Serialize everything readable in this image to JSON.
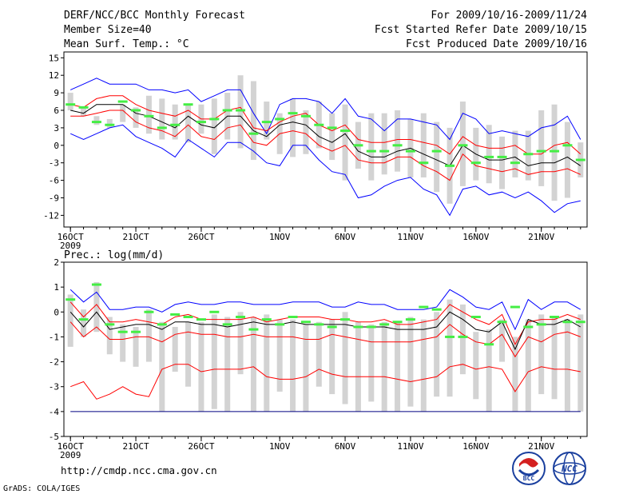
{
  "header": {
    "title": "DERF/NCC/BCC Monthly Forecast",
    "member_size": "Member Size=40",
    "variable": "Mean Surf. Temp.: °C",
    "forecast_period": "For 2009/10/16-2009/11/24",
    "fcst_started": "Fcst Started Refer Date 2009/10/15",
    "fcst_produced": "Fcst Produced Date 2009/10/16"
  },
  "footer": {
    "url": "http://cmdp.ncc.cma.gov.cn",
    "grads": "GrADS: COLA/IGES",
    "logo_bcc": "BCC",
    "logo_ncc": "NCC"
  },
  "colors": {
    "max_min": "#0000ff",
    "spread": "#ff0000",
    "mean": "#000000",
    "observed": "#44ee44",
    "box": "#d3d3d3",
    "floor": "#000080"
  },
  "chart_data": [
    {
      "type": "box",
      "title": "Mean Surf. Temp.: °C",
      "xlabel": "",
      "ylabel": "°C",
      "ylim": [
        -14,
        16
      ],
      "yticks": [
        15,
        12,
        9,
        6,
        3,
        0,
        -3,
        -6,
        -9,
        -12
      ],
      "xlim": [
        0.5,
        40.5
      ],
      "xticks": [
        {
          "day": 1,
          "label": "16OCT",
          "sub": "2009"
        },
        {
          "day": 6,
          "label": "21OCT"
        },
        {
          "day": 11,
          "label": "26OCT"
        },
        {
          "day": 17,
          "label": "1NOV"
        },
        {
          "day": 22,
          "label": "6NOV"
        },
        {
          "day": 27,
          "label": "11NOV"
        },
        {
          "day": 32,
          "label": "16NOV"
        },
        {
          "day": 37,
          "label": "21NOV"
        }
      ],
      "series": {
        "max": [
          9.5,
          10.5,
          11.5,
          10.5,
          10.5,
          10.5,
          9.5,
          9.5,
          9.0,
          9.5,
          7.5,
          8.5,
          9.5,
          9.5,
          5.5,
          2.0,
          7.0,
          8.0,
          8.0,
          7.5,
          5.5,
          8.0,
          5.0,
          4.5,
          2.5,
          4.5,
          4.5,
          4.0,
          3.5,
          1.0,
          5.5,
          4.5,
          2.0,
          2.5,
          2.0,
          1.5,
          3.0,
          3.5,
          5.0,
          1.0
        ],
        "upper": [
          7.0,
          6.5,
          8.0,
          8.5,
          8.5,
          7.0,
          6.0,
          5.5,
          5.0,
          6.0,
          4.5,
          4.5,
          6.0,
          6.5,
          3.0,
          2.5,
          4.0,
          5.0,
          5.5,
          3.5,
          2.5,
          3.5,
          1.0,
          0.5,
          0.5,
          1.0,
          1.0,
          0.5,
          0.0,
          -1.5,
          1.5,
          0.0,
          -0.5,
          -0.5,
          0.0,
          -1.5,
          -1.5,
          0.0,
          0.5,
          -1.5
        ],
        "mean": [
          6.0,
          5.5,
          7.0,
          7.0,
          7.0,
          5.5,
          5.0,
          4.0,
          3.0,
          5.0,
          3.5,
          3.0,
          5.0,
          5.0,
          2.5,
          1.5,
          3.5,
          4.0,
          3.5,
          1.5,
          0.5,
          2.0,
          -1.0,
          -2.0,
          -2.0,
          -1.0,
          -0.5,
          -1.5,
          -2.5,
          -3.5,
          0.0,
          -1.5,
          -2.5,
          -2.5,
          -2.0,
          -3.5,
          -3.0,
          -3.0,
          -2.0,
          -3.5
        ],
        "lower": [
          5.0,
          5.0,
          5.5,
          6.0,
          6.0,
          4.0,
          3.0,
          2.5,
          1.5,
          3.5,
          1.5,
          1.0,
          3.0,
          3.5,
          0.5,
          0.0,
          2.0,
          2.5,
          2.0,
          0.0,
          -1.0,
          0.0,
          -2.5,
          -3.0,
          -3.0,
          -2.0,
          -2.0,
          -3.5,
          -4.5,
          -6.0,
          -1.5,
          -3.5,
          -4.0,
          -4.5,
          -4.0,
          -5.0,
          -4.5,
          -4.5,
          -4.0,
          -5.0
        ],
        "min": [
          2.0,
          1.0,
          2.0,
          3.0,
          3.5,
          1.5,
          0.5,
          -0.5,
          -2.0,
          1.0,
          -0.5,
          -2.0,
          0.5,
          0.5,
          -1.0,
          -3.0,
          -3.5,
          0.0,
          0.0,
          -2.5,
          -4.5,
          -5.0,
          -9.0,
          -8.5,
          -7.0,
          -6.0,
          -5.5,
          -7.5,
          -8.5,
          -12.0,
          -7.5,
          -7.0,
          -8.5,
          -8.0,
          -9.0,
          -8.0,
          -9.5,
          -11.5,
          -10.0,
          -9.5
        ],
        "box_hi": [
          9.0,
          6.5,
          5.0,
          4.5,
          7.0,
          6.5,
          8.5,
          8.0,
          7.0,
          7.0,
          7.0,
          8.0,
          9.0,
          12.0,
          11.0,
          7.5,
          5.5,
          8.0,
          6.0,
          7.5,
          5.5,
          7.0,
          4.0,
          5.5,
          5.5,
          6.0,
          4.5,
          5.5,
          4.0,
          3.0,
          7.5,
          3.0,
          3.5,
          1.5,
          2.5,
          2.5,
          6.0,
          7.0,
          4.0,
          0.5
        ],
        "box_lo": [
          6.0,
          5.0,
          3.5,
          3.0,
          4.0,
          3.0,
          2.0,
          1.0,
          1.0,
          0.5,
          2.0,
          -1.5,
          1.0,
          -0.5,
          -2.5,
          1.0,
          -1.5,
          -2.0,
          -1.5,
          -0.5,
          -2.5,
          -6.0,
          -4.0,
          -6.0,
          -5.0,
          -4.5,
          -5.5,
          -5.5,
          -8.0,
          -10.0,
          -7.0,
          -6.0,
          -6.5,
          -7.5,
          -5.5,
          -6.0,
          -7.0,
          -9.5,
          -9.0,
          -5.5
        ],
        "observed": [
          7.0,
          6.5,
          4.0,
          3.5,
          7.5,
          6.0,
          5.0,
          3.0,
          3.5,
          7.0,
          4.0,
          4.5,
          6.0,
          6.0,
          2.0,
          4.0,
          4.5,
          5.5,
          5.0,
          3.5,
          3.0,
          2.5,
          0.0,
          -1.0,
          -1.0,
          0.0,
          -1.0,
          -3.0,
          -1.0,
          -3.5,
          0.0,
          -3.0,
          -2.0,
          -2.0,
          -3.0,
          -1.5,
          -1.0,
          -1.0,
          0.0,
          -2.5
        ]
      }
    },
    {
      "type": "box",
      "title": "Prec.: log(mm/d)",
      "xlabel": "",
      "ylabel": "log(mm/d)",
      "ylim": [
        -5,
        2
      ],
      "yticks": [
        2,
        1,
        0,
        -1,
        -2,
        -3,
        -4,
        -5
      ],
      "xlim": [
        0.5,
        40.5
      ],
      "xticks": [
        {
          "day": 1,
          "label": "16OCT",
          "sub": "2009"
        },
        {
          "day": 6,
          "label": "21OCT"
        },
        {
          "day": 11,
          "label": "26OCT"
        },
        {
          "day": 17,
          "label": "1NOV"
        },
        {
          "day": 22,
          "label": "6NOV"
        },
        {
          "day": 27,
          "label": "11NOV"
        },
        {
          "day": 32,
          "label": "16NOV"
        },
        {
          "day": 37,
          "label": "21NOV"
        }
      ],
      "series": {
        "max": [
          0.9,
          0.4,
          0.8,
          0.1,
          0.1,
          0.2,
          0.2,
          0.0,
          0.3,
          0.4,
          0.3,
          0.3,
          0.4,
          0.4,
          0.3,
          0.3,
          0.3,
          0.4,
          0.4,
          0.4,
          0.2,
          0.2,
          0.4,
          0.3,
          0.3,
          0.1,
          0.1,
          0.1,
          0.2,
          0.9,
          0.6,
          0.2,
          0.1,
          0.4,
          -0.7,
          0.5,
          0.1,
          0.4,
          0.4,
          0.1
        ],
        "upper": [
          0.4,
          -0.2,
          0.3,
          -0.4,
          -0.4,
          -0.3,
          -0.4,
          -0.5,
          -0.2,
          -0.1,
          -0.3,
          -0.3,
          -0.3,
          -0.3,
          -0.2,
          -0.4,
          -0.3,
          -0.2,
          -0.2,
          -0.2,
          -0.3,
          -0.3,
          -0.4,
          -0.4,
          -0.3,
          -0.5,
          -0.5,
          -0.4,
          -0.3,
          0.3,
          0.0,
          -0.3,
          -0.5,
          -0.1,
          -1.3,
          -0.4,
          -0.3,
          -0.3,
          -0.1,
          -0.3
        ],
        "mean": [
          0.0,
          -0.6,
          0.0,
          -0.7,
          -0.6,
          -0.5,
          -0.5,
          -0.7,
          -0.4,
          -0.4,
          -0.5,
          -0.5,
          -0.6,
          -0.5,
          -0.4,
          -0.5,
          -0.5,
          -0.4,
          -0.5,
          -0.5,
          -0.5,
          -0.5,
          -0.6,
          -0.6,
          -0.6,
          -0.7,
          -0.7,
          -0.7,
          -0.6,
          -0.0,
          -0.3,
          -0.7,
          -0.8,
          -0.4,
          -1.5,
          -0.3,
          -0.5,
          -0.5,
          -0.3,
          -0.6
        ],
        "lower": [
          -0.4,
          -1.0,
          -0.6,
          -1.1,
          -1.1,
          -1.0,
          -1.0,
          -1.2,
          -0.9,
          -0.8,
          -0.9,
          -0.9,
          -1.0,
          -1.0,
          -0.9,
          -1.0,
          -1.0,
          -1.0,
          -1.1,
          -1.1,
          -0.9,
          -1.0,
          -1.1,
          -1.2,
          -1.2,
          -1.2,
          -1.2,
          -1.1,
          -1.0,
          -0.5,
          -0.9,
          -1.2,
          -1.3,
          -0.9,
          -1.8,
          -1.0,
          -1.2,
          -0.9,
          -0.8,
          -1.0
        ],
        "lower2": [
          -3.0,
          -2.8,
          -3.5,
          -3.3,
          -3.0,
          -3.3,
          -3.4,
          -2.3,
          -2.1,
          -2.1,
          -2.4,
          -2.3,
          -2.3,
          -2.3,
          -2.2,
          -2.6,
          -2.7,
          -2.7,
          -2.6,
          -2.3,
          -2.5,
          -2.6,
          -2.6,
          -2.6,
          -2.6,
          -2.7,
          -2.8,
          -2.7,
          -2.6,
          -2.2,
          -2.1,
          -2.3,
          -2.2,
          -2.3,
          -3.2,
          -2.4,
          -2.2,
          -2.3,
          -2.3,
          -2.4
        ],
        "box_hi": [
          0.7,
          0.1,
          1.2,
          -0.2,
          -0.5,
          -0.6,
          0.1,
          -0.4,
          -0.6,
          -0.4,
          -0.4,
          -0.1,
          -0.2,
          0.0,
          -0.2,
          -0.1,
          -0.3,
          -0.3,
          -0.5,
          -0.4,
          -0.3,
          0.0,
          -0.4,
          -0.5,
          -0.4,
          -0.4,
          -0.2,
          -0.3,
          0.0,
          0.5,
          0.3,
          -0.8,
          -0.7,
          -0.3,
          -1.0,
          -0.3,
          -0.1,
          -0.2,
          -0.3,
          -0.1
        ],
        "box_lo": [
          -1.4,
          -1.0,
          -0.8,
          -1.7,
          -2.0,
          -2.2,
          -2.0,
          -4.0,
          -2.4,
          -3.0,
          -4.0,
          -3.9,
          -4.0,
          -2.5,
          -4.0,
          -4.0,
          -3.2,
          -4.0,
          -4.0,
          -3.0,
          -3.3,
          -3.7,
          -4.0,
          -3.6,
          -4.0,
          -4.0,
          -3.8,
          -4.0,
          -3.4,
          -3.4,
          -2.5,
          -3.5,
          -4.0,
          -2.0,
          -4.0,
          -4.0,
          -3.3,
          -3.5,
          -4.0,
          -4.0
        ],
        "observed": [
          0.5,
          -0.3,
          1.1,
          -0.5,
          -0.8,
          -0.8,
          0.0,
          -0.5,
          -0.1,
          -0.2,
          -0.3,
          0.0,
          -0.5,
          -0.2,
          -0.7,
          -0.3,
          -0.5,
          -0.2,
          -0.4,
          -0.5,
          -0.6,
          -0.3,
          -0.6,
          -0.6,
          -0.5,
          -0.4,
          -0.3,
          0.2,
          0.1,
          -1.0,
          -1.0,
          -0.2,
          -1.3,
          -0.4,
          0.2,
          -0.6,
          -0.5,
          -0.2,
          -0.4,
          -0.4
        ],
        "floor": -4.0
      }
    }
  ]
}
